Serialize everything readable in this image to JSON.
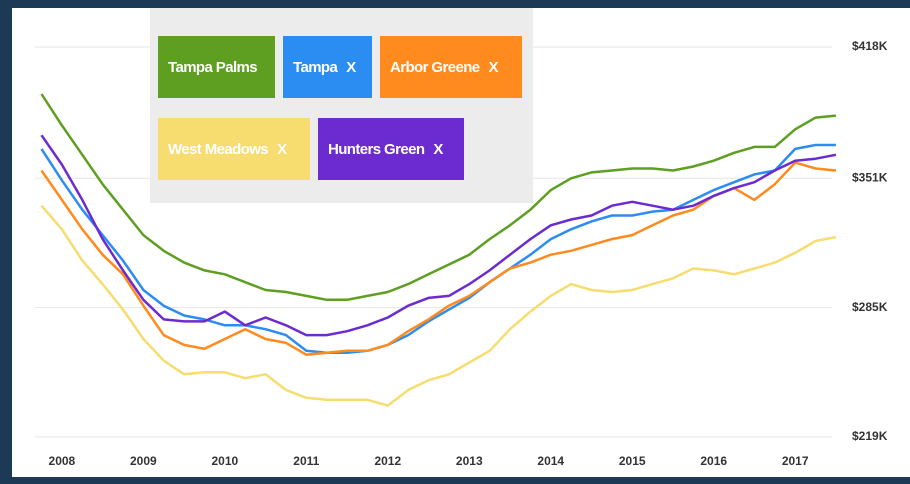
{
  "chart_data": {
    "type": "line",
    "x": [
      2007.75,
      2008.0,
      2008.25,
      2008.5,
      2008.75,
      2009.0,
      2009.25,
      2009.5,
      2009.75,
      2010.0,
      2010.25,
      2010.5,
      2010.75,
      2011.0,
      2011.25,
      2011.5,
      2011.75,
      2012.0,
      2012.25,
      2012.5,
      2012.75,
      2013.0,
      2013.25,
      2013.5,
      2013.75,
      2014.0,
      2014.25,
      2014.5,
      2014.75,
      2015.0,
      2015.25,
      2015.5,
      2015.75,
      2016.0,
      2016.25,
      2016.5,
      2016.75,
      2017.0,
      2017.25,
      2017.5
    ],
    "xlim": [
      2007.67,
      2017.55
    ],
    "xticks": [
      2008,
      2009,
      2010,
      2011,
      2012,
      2013,
      2014,
      2015,
      2016,
      2017
    ],
    "ylim": [
      219,
      418
    ],
    "yticks": [
      {
        "value": 219,
        "label": "$219K"
      },
      {
        "value": 285,
        "label": "$285K"
      },
      {
        "value": 351,
        "label": "$351K"
      },
      {
        "value": 418,
        "label": "$418K"
      }
    ],
    "grid": true,
    "remove_label": "X",
    "series": [
      {
        "name": "Tampa Palms",
        "color": "#5e9e20",
        "removable": false,
        "values": [
          394,
          378,
          363,
          348,
          335,
          322,
          314,
          308,
          304,
          302,
          298,
          294,
          293,
          291,
          289,
          289,
          291,
          293,
          297,
          302,
          307,
          312,
          320,
          327,
          335,
          345,
          351,
          354,
          355,
          356,
          356,
          355,
          357,
          360,
          364,
          367,
          367,
          376,
          382,
          383
        ]
      },
      {
        "name": "Tampa",
        "color": "#2b8cf2",
        "removable": true,
        "values": [
          366,
          350,
          335,
          322,
          309,
          294,
          286,
          281,
          279,
          276,
          276,
          274,
          271,
          263,
          262,
          262,
          263,
          266,
          271,
          278,
          284,
          290,
          298,
          305,
          312,
          320,
          325,
          329,
          332,
          332,
          334,
          335,
          340,
          345,
          349,
          353,
          355,
          366,
          368,
          368
        ]
      },
      {
        "name": "Arbor Greene",
        "color": "#ff8a1d",
        "removable": true,
        "values": [
          355,
          340,
          325,
          312,
          302,
          286,
          271,
          266,
          264,
          269,
          274,
          269,
          267,
          261,
          262,
          263,
          263,
          266,
          273,
          279,
          286,
          291,
          298,
          305,
          308,
          312,
          314,
          317,
          320,
          322,
          327,
          332,
          335,
          342,
          346,
          340,
          348,
          359,
          356,
          355
        ]
      },
      {
        "name": "West Meadows",
        "color": "#f7dc6f",
        "removable": true,
        "values": [
          337,
          325,
          309,
          297,
          284,
          269,
          258,
          251,
          252,
          252,
          249,
          251,
          243,
          239,
          238,
          238,
          238,
          235,
          243,
          248,
          251,
          257,
          263,
          274,
          283,
          291,
          297,
          294,
          293,
          294,
          297,
          300,
          305,
          304,
          302,
          305,
          308,
          313,
          319,
          321
        ]
      },
      {
        "name": "Hunters Green",
        "color": "#6b2bd1",
        "removable": true,
        "values": [
          373,
          358,
          340,
          320,
          304,
          289,
          279,
          278,
          278,
          283,
          276,
          280,
          276,
          271,
          271,
          273,
          276,
          280,
          286,
          290,
          291,
          297,
          304,
          312,
          320,
          327,
          330,
          332,
          337,
          339,
          337,
          335,
          337,
          342,
          346,
          349,
          355,
          360,
          361,
          363
        ]
      }
    ]
  }
}
